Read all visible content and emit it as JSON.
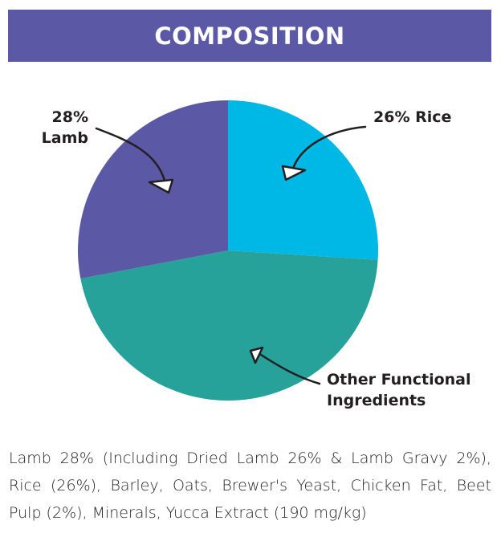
{
  "banner": {
    "title": "COMPOSITION"
  },
  "chart_data": {
    "type": "pie",
    "slices": [
      {
        "label": "Rice",
        "value": 26,
        "color": "#00b8e6"
      },
      {
        "label": "Other Functional Ingredients",
        "value": 46,
        "color": "#26a29b"
      },
      {
        "label": "Lamb",
        "value": 28,
        "color": "#5b58a6"
      }
    ],
    "annotations": {
      "lamb_pct": "28%",
      "lamb_label": "Lamb",
      "rice": "26% Rice",
      "other_line1": "Other Functional",
      "other_line2": "Ingredients"
    }
  },
  "description": "Lamb 28% (Including Dried Lamb 26% & Lamb Gravy 2%), Rice (26%), Barley, Oats, Brewer's Yeast, Chicken Fat, Beet Pulp (2%), Minerals, Yucca Extract (190 mg/kg)"
}
